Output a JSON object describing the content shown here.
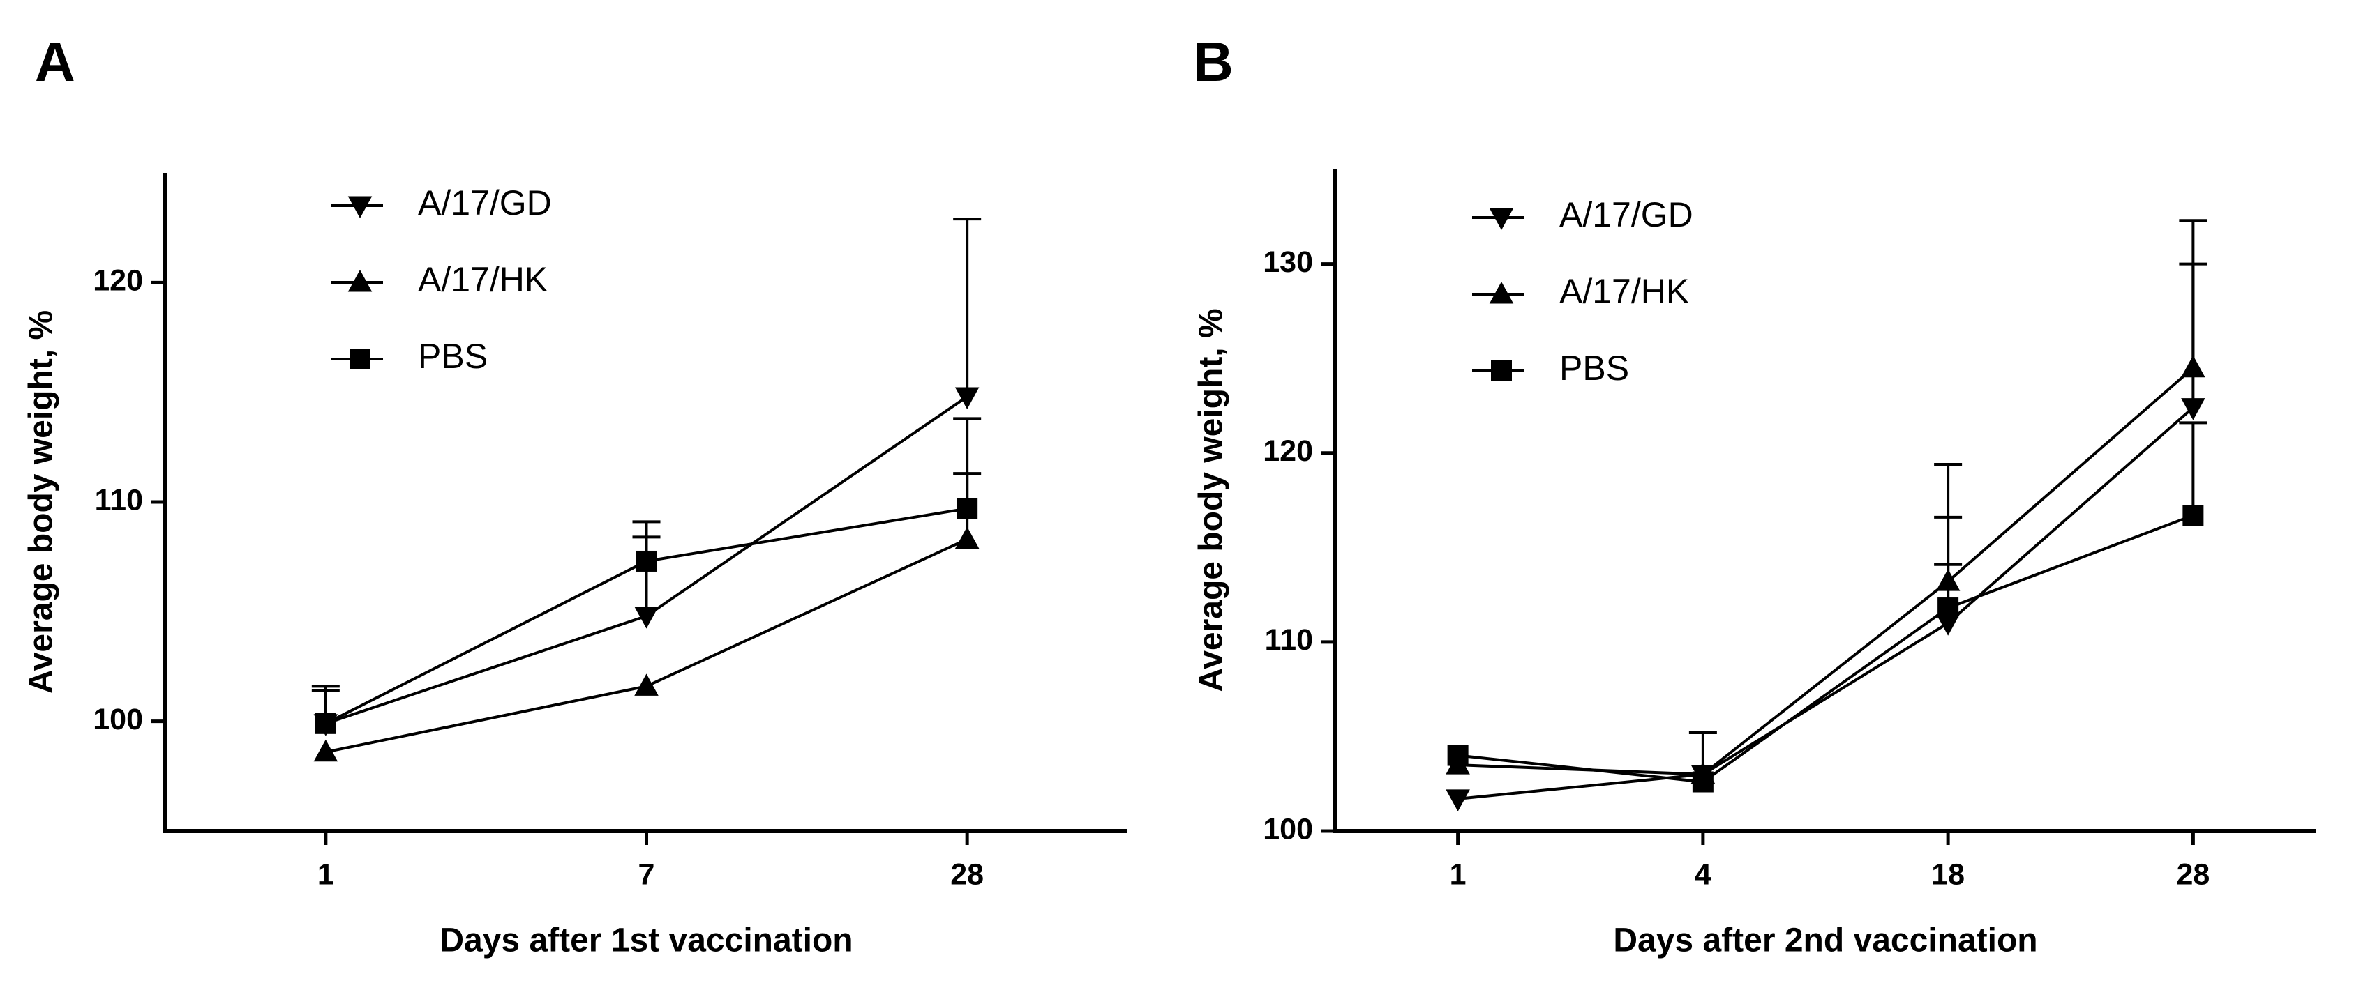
{
  "chart_data": [
    {
      "type": "line",
      "panel": "A",
      "x_label": "Days after 1st vaccination",
      "y_label": "Average body weight, %",
      "categories": [
        "1",
        "7",
        "28"
      ],
      "ylim": [
        95,
        125
      ],
      "yticks": [
        100,
        110,
        120
      ],
      "series": [
        {
          "name": "A/17/GD",
          "color": "#000000",
          "marker": "triangle-down",
          "values": [
            99.9,
            104.8,
            114.8
          ],
          "errors": [
            1.5,
            3.6,
            8.1
          ]
        },
        {
          "name": "A/17/HK",
          "color": "#000000",
          "marker": "triangle-up",
          "values": [
            98.6,
            101.6,
            108.3
          ],
          "errors": [
            0,
            0,
            3.0
          ]
        },
        {
          "name": "PBS",
          "color": "#000000",
          "marker": "square",
          "values": [
            99.9,
            107.3,
            109.7
          ],
          "errors": [
            1.7,
            1.8,
            4.1
          ]
        }
      ]
    },
    {
      "type": "line",
      "panel": "B",
      "x_label": "Days after 2nd vaccination",
      "y_label": "Average body weight, %",
      "categories": [
        "1",
        "4",
        "18",
        "28"
      ],
      "ylim": [
        100,
        135
      ],
      "yticks": [
        100,
        110,
        120,
        130
      ],
      "series": [
        {
          "name": "A/17/GD",
          "color": "#000000",
          "marker": "triangle-down",
          "values": [
            101.7,
            103.0,
            111.0,
            122.4
          ],
          "errors": [
            0,
            0,
            5.6,
            7.6
          ]
        },
        {
          "name": "A/17/HK",
          "color": "#000000",
          "marker": "triangle-up",
          "values": [
            103.5,
            103.0,
            113.2,
            124.5
          ],
          "errors": [
            0,
            2.2,
            6.2,
            7.8
          ]
        },
        {
          "name": "PBS",
          "color": "#000000",
          "marker": "square",
          "values": [
            104.0,
            102.6,
            111.8,
            116.7
          ],
          "errors": [
            0,
            0,
            2.3,
            4.9
          ]
        }
      ]
    }
  ]
}
